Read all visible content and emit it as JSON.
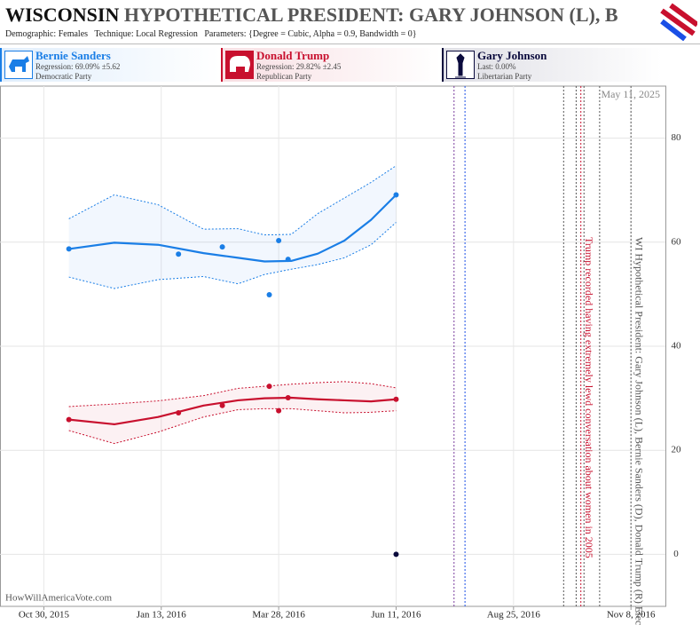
{
  "chart_data": {
    "type": "line",
    "title": "WISCONSIN",
    "title_rest": "HYPOTHETICAL PRESIDENT: GARY JOHNSON (L), B",
    "subtitle": "Demographic: Females   Technique: Local Regression   Parameters: {Degree = Cubic, Alpha = 0.9, Bandwidth = 0}",
    "date_stamp": "May 11, 2025",
    "source": "HowWillAmericaVote.com",
    "xlim": [
      "2015-10-02",
      "2016-11-30"
    ],
    "xticks": [
      {
        "value": "2015-10-30",
        "label": "Oct 30, 2015"
      },
      {
        "value": "2016-01-13",
        "label": "Jan 13, 2016"
      },
      {
        "value": "2016-03-28",
        "label": "Mar 28, 2016"
      },
      {
        "value": "2016-06-11",
        "label": "Jun 11, 2016"
      },
      {
        "value": "2016-08-25",
        "label": "Aug 25, 2016"
      },
      {
        "value": "2016-11-08",
        "label": "Nov 8, 2016"
      }
    ],
    "ylim": [
      -10,
      90
    ],
    "yticks": [
      0,
      20,
      40,
      60,
      80
    ],
    "grid": true,
    "series": [
      {
        "name": "Bernie Sanders",
        "color": "#1a7ee6",
        "summary": "Regression: 69.09% ±5.62",
        "party": "Democratic Party",
        "x": [
          "2015-11-15",
          "2016-01-24",
          "2016-02-21",
          "2016-03-22",
          "2016-03-28",
          "2016-04-03",
          "2016-06-11"
        ],
        "values": [
          58.7,
          57.7,
          59.1,
          49.9,
          60.3,
          56.7,
          69.1
        ],
        "regression": {
          "x": [
            "2015-11-15",
            "2015-12-14",
            "2016-01-11",
            "2016-02-09",
            "2016-03-02",
            "2016-03-19",
            "2016-04-05",
            "2016-04-22",
            "2016-05-09",
            "2016-05-26",
            "2016-06-11"
          ],
          "values": [
            58.7,
            59.9,
            59.5,
            57.9,
            57.0,
            56.3,
            56.4,
            57.8,
            60.3,
            64.3,
            69.1
          ],
          "upper": [
            64.5,
            69.1,
            67.2,
            62.5,
            62.6,
            61.4,
            61.5,
            65.5,
            68.5,
            71.5,
            74.7
          ],
          "lower": [
            53.3,
            51.1,
            52.8,
            53.4,
            52.0,
            53.8,
            54.8,
            55.7,
            57.0,
            59.5,
            63.8
          ]
        }
      },
      {
        "name": "Donald Trump",
        "color": "#c8102e",
        "summary": "Regression: 29.82% ±2.45",
        "party": "Republican Party",
        "x": [
          "2015-11-15",
          "2016-01-24",
          "2016-02-21",
          "2016-03-22",
          "2016-03-28",
          "2016-04-03",
          "2016-06-11"
        ],
        "values": [
          25.9,
          27.2,
          28.6,
          32.3,
          27.6,
          30.1,
          29.8
        ],
        "regression": {
          "x": [
            "2015-11-15",
            "2015-12-14",
            "2016-01-11",
            "2016-02-09",
            "2016-03-02",
            "2016-03-19",
            "2016-04-05",
            "2016-04-22",
            "2016-05-09",
            "2016-05-26",
            "2016-06-11"
          ],
          "values": [
            25.9,
            25.0,
            26.4,
            28.6,
            29.6,
            30.0,
            30.1,
            29.8,
            29.6,
            29.4,
            29.8
          ],
          "upper": [
            28.4,
            28.9,
            29.5,
            30.5,
            31.9,
            32.3,
            32.7,
            33.0,
            33.2,
            32.8,
            32.0
          ],
          "lower": [
            23.8,
            21.3,
            23.5,
            26.4,
            27.8,
            28.0,
            28.0,
            27.6,
            27.2,
            27.3,
            27.6
          ]
        }
      },
      {
        "name": "Gary Johnson",
        "color": "#0a0a3c",
        "summary": "Last: 0.00%",
        "party": "Libertarian Party",
        "x": [
          "2016-06-11"
        ],
        "values": [
          0
        ]
      }
    ],
    "events": [
      {
        "date": "2016-07-18",
        "color": "#7a3d9e"
      },
      {
        "date": "2016-07-25",
        "color": "#1a4fe6"
      },
      {
        "date": "2016-09-26",
        "color": "#555555"
      },
      {
        "date": "2016-10-04",
        "color": "#555555"
      },
      {
        "date": "2016-10-07",
        "color": "#c8102e",
        "label": "Trump recorded having extremely lewd conversation about women in 2005"
      },
      {
        "date": "2016-10-09",
        "color": "#555555"
      },
      {
        "date": "2016-10-19",
        "color": "#555555"
      },
      {
        "date": "2016-11-08",
        "color": "#555555",
        "label": "WI Hypothetical President: Gary Johnson (L), Bernie Sanders (D), Donald Trump (R) Election"
      }
    ]
  }
}
